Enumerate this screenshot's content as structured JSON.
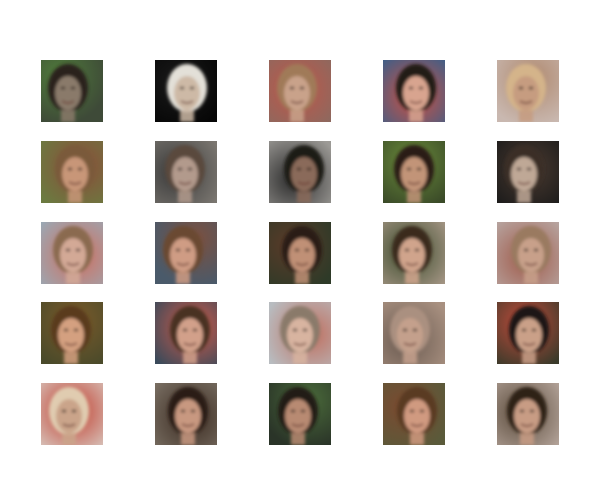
{
  "grid": {
    "rows": 5,
    "cols": 5,
    "tiles": [
      {
        "bg": "#3e4a38",
        "accent": "#4f7a3a",
        "skin": "#8a7a6a",
        "hair": "#2a241e",
        "icon": "face-photo"
      },
      {
        "bg": "#060606",
        "accent": "#1a1a1a",
        "skin": "#cdb9a6",
        "hair": "#e3e0d8",
        "icon": "face-photo"
      },
      {
        "bg": "#8a6a60",
        "accent": "#c05548",
        "skin": "#c9a28a",
        "hair": "#a07a58",
        "icon": "face-photo"
      },
      {
        "bg": "#3a5f8a",
        "accent": "#d0503f",
        "skin": "#d8a48f",
        "hair": "#241a12",
        "icon": "face-photo"
      },
      {
        "bg": "#c9b8b0",
        "accent": "#b08a70",
        "skin": "#c69c80",
        "hair": "#d4b48a",
        "icon": "face-photo"
      },
      {
        "bg": "#6b7a40",
        "accent": "#8a4e3a",
        "skin": "#c89678",
        "hair": "#7a5a3a",
        "icon": "face-photo"
      },
      {
        "bg": "#7a7670",
        "accent": "#3a3a3a",
        "skin": "#b29a8c",
        "hair": "#5a4a3e",
        "icon": "face-photo"
      },
      {
        "bg": "#9c9a96",
        "accent": "#2a2a2a",
        "skin": "#8a6a5a",
        "hair": "#1e1a16",
        "icon": "face-photo"
      },
      {
        "bg": "#3a4a28",
        "accent": "#6a8a3a",
        "skin": "#c29478",
        "hair": "#2a1e16",
        "icon": "face-photo"
      },
      {
        "bg": "#1a1a1a",
        "accent": "#4a3a30",
        "skin": "#bfa896",
        "hair": "#3a2e26",
        "icon": "face-photo"
      },
      {
        "bg": "#9aa8b4",
        "accent": "#d07060",
        "skin": "#d3a996",
        "hair": "#8a6a50",
        "icon": "face-photo"
      },
      {
        "bg": "#4a5a6a",
        "accent": "#7a5040",
        "skin": "#cf9c84",
        "hair": "#6a4a30",
        "icon": "face-photo"
      },
      {
        "bg": "#2e3a28",
        "accent": "#5a3a28",
        "skin": "#c09076",
        "hair": "#2a1c14",
        "icon": "face-photo"
      },
      {
        "bg": "#a89888",
        "accent": "#3a4a2a",
        "skin": "#d0a48c",
        "hair": "#3a2a1e",
        "icon": "face-photo"
      },
      {
        "bg": "#b8a8a4",
        "accent": "#a05a4a",
        "skin": "#c8a08a",
        "hair": "#9a7a60",
        "icon": "face-photo"
      },
      {
        "bg": "#4a4a2a",
        "accent": "#7a5a2a",
        "skin": "#d4a080",
        "hair": "#5a3a1e",
        "icon": "face-photo"
      },
      {
        "bg": "#3a4a5a",
        "accent": "#d05a48",
        "skin": "#d2a08a",
        "hair": "#4a3020",
        "icon": "face-photo"
      },
      {
        "bg": "#b8bcc0",
        "accent": "#c07060",
        "skin": "#d8b4a0",
        "hair": "#8a7a6a",
        "icon": "face-photo"
      },
      {
        "bg": "#a89080",
        "accent": "#6a5a50",
        "skin": "#c4a08c",
        "hair": "#aa9080",
        "icon": "face-photo"
      },
      {
        "bg": "#3a3a2a",
        "accent": "#c04a3a",
        "skin": "#caa088",
        "hair": "#1e1812",
        "icon": "face-photo"
      },
      {
        "bg": "#d8c8c0",
        "accent": "#c03a2a",
        "skin": "#caa48a",
        "hair": "#e0ccb0",
        "icon": "face-photo"
      },
      {
        "bg": "#7a7064",
        "accent": "#3a2a20",
        "skin": "#c89880",
        "hair": "#2a1e16",
        "icon": "face-photo"
      },
      {
        "bg": "#2a3428",
        "accent": "#4a6a3a",
        "skin": "#b88a72",
        "hair": "#221a14",
        "icon": "face-photo"
      },
      {
        "bg": "#5a5a3a",
        "accent": "#7a4a30",
        "skin": "#d09a80",
        "hair": "#5a3a22",
        "icon": "face-photo"
      },
      {
        "bg": "#b4a49a",
        "accent": "#5a4a3a",
        "skin": "#c89c84",
        "hair": "#2e2218",
        "icon": "face-photo"
      }
    ]
  }
}
